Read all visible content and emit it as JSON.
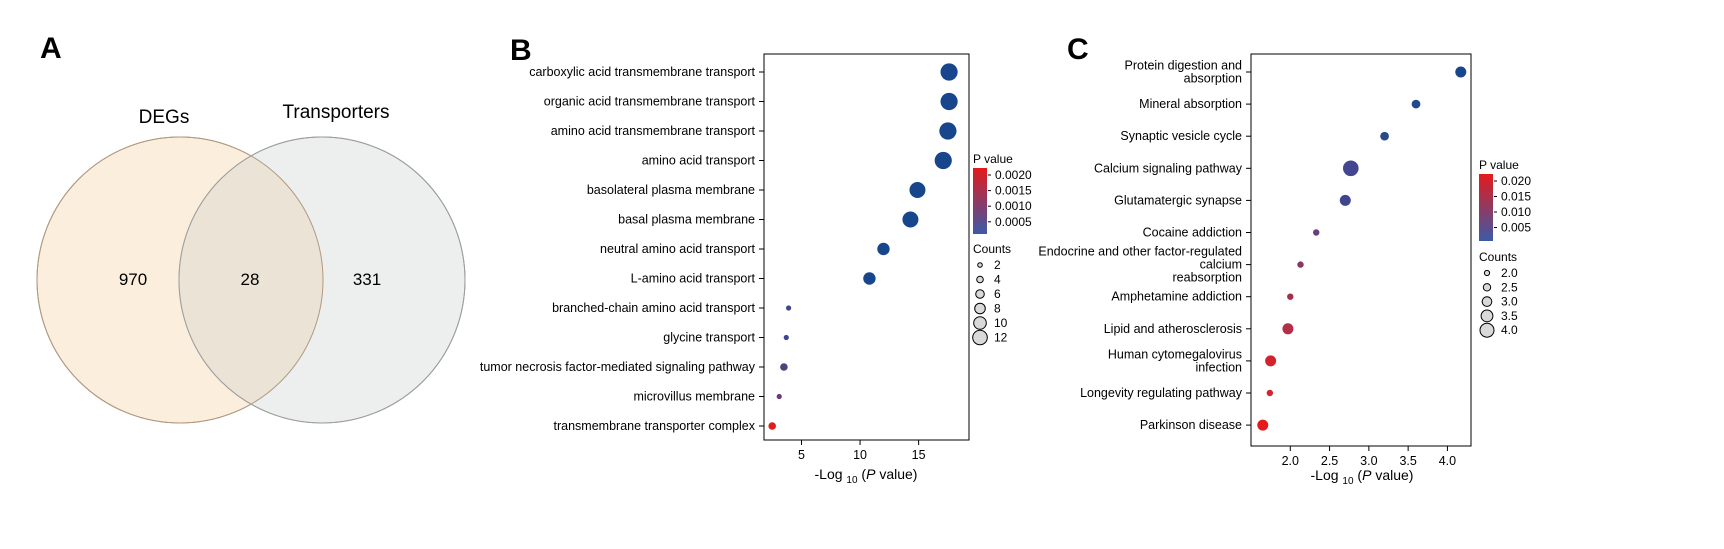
{
  "panels": {
    "a": "A",
    "b": "B",
    "c": "C"
  },
  "venn": {
    "left_label": "DEGs",
    "right_label": "Transporters",
    "left_only": "970",
    "both": "28",
    "right_only": "331",
    "left_color": "#fbeedd",
    "right_color": "#edeeee",
    "overlap_color": "#ebe3d6"
  },
  "axis_titles": {
    "b_xlabel": {
      "pre": "-Log ",
      "sub": "10",
      "mid": " (",
      "ital": "P",
      "post": " value)"
    },
    "c_xlabel": {
      "pre": "-Log ",
      "sub": "10",
      "mid": " (",
      "ital": "P",
      "post": " value)"
    }
  },
  "legends": {
    "b": {
      "pvalue_title": "P value",
      "pvalue_ticks": [
        "0.0020",
        "0.0015",
        "0.0010",
        "0.0005"
      ],
      "counts_title": "Counts",
      "counts_ticks": [
        "2",
        "4",
        "6",
        "8",
        "10",
        "12"
      ]
    },
    "c": {
      "pvalue_title": "P value",
      "pvalue_ticks": [
        "0.020",
        "0.015",
        "0.010",
        "0.005"
      ],
      "counts_title": "Counts",
      "counts_ticks": [
        "2.0",
        "2.5",
        "3.0",
        "3.5",
        "4.0"
      ]
    }
  },
  "chart_data": [
    {
      "type": "venn",
      "sets": [
        "DEGs",
        "Transporters"
      ],
      "values": {
        "DEGs_only": 970,
        "intersection": 28,
        "Transporters_only": 331
      }
    },
    {
      "type": "scatter",
      "subtype": "dot-plot",
      "xlabel": "-Log 10 (P value)",
      "xlim": [
        1.8,
        19.3
      ],
      "xticks": [
        5,
        10,
        15
      ],
      "categories": [
        "carboxylic acid transmembrane transport",
        "organic acid transmembrane transport",
        "amino acid transmembrane transport",
        "amino acid transport",
        "basolateral plasma membrane",
        "basal plasma membrane",
        "neutral amino acid transport",
        "L-amino acid transport",
        "branched-chain amino acid transport",
        "glycine transport",
        "tumor necrosis factor-mediated signaling pathway",
        "microvillus membrane",
        "transmembrane transporter complex"
      ],
      "x": [
        17.6,
        17.6,
        17.5,
        17.1,
        14.9,
        14.3,
        12.0,
        10.8,
        3.9,
        3.7,
        3.5,
        3.1,
        2.5
      ],
      "counts": [
        12,
        12,
        12,
        12,
        11,
        11,
        8,
        8,
        2,
        2,
        4,
        2,
        4
      ],
      "color_scale": {
        "title": "P value",
        "min": 0.0,
        "max": 0.0022,
        "low_color": "#2a4d9a",
        "high_color": "#e41a1c"
      },
      "size_legend": {
        "title": "Counts",
        "values": [
          2,
          4,
          6,
          8,
          10,
          12
        ]
      },
      "colors": [
        "#17468c",
        "#17468c",
        "#17468c",
        "#17468c",
        "#17468c",
        "#17468c",
        "#17468c",
        "#17468c",
        "#3f468f",
        "#3f468f",
        "#54407f",
        "#6a3b76",
        "#e41a1c"
      ]
    },
    {
      "type": "scatter",
      "subtype": "dot-plot",
      "xlabel": "-Log 10 (P value)",
      "xlim": [
        1.5,
        4.3
      ],
      "xticks": [
        2.0,
        2.5,
        3.0,
        3.5,
        4.0
      ],
      "categories": [
        "Protein digestion and absorption",
        "Mineral absorption",
        "Synaptic vesicle cycle",
        "Calcium signaling pathway",
        "Glutamatergic synapse",
        "Cocaine addiction",
        "Endocrine and other factor-regulated calcium reabsorption",
        "Amphetamine addiction",
        "Lipid and atherosclerosis",
        "Human cytomegalovirus infection",
        "Longevity regulating pathway",
        "Parkinson disease"
      ],
      "x": [
        4.17,
        3.6,
        3.2,
        2.77,
        2.7,
        2.33,
        2.13,
        2.0,
        1.97,
        1.75,
        1.74,
        1.65
      ],
      "counts": [
        3,
        2.5,
        2.5,
        4,
        3,
        2,
        2,
        2,
        3,
        3,
        2,
        3
      ],
      "color_scale": {
        "title": "P value",
        "min": 0.0,
        "max": 0.023,
        "low_color": "#2a4d9a",
        "high_color": "#e41a1c"
      },
      "size_legend": {
        "title": "Counts",
        "values": [
          2.0,
          2.5,
          3.0,
          3.5,
          4.0
        ]
      },
      "colors": [
        "#17468c",
        "#1f4a8c",
        "#274a8a",
        "#44478f",
        "#3f458d",
        "#6a3d7d",
        "#8d3663",
        "#a52f4b",
        "#b22f47",
        "#d3242e",
        "#cf2632",
        "#e41a1c"
      ]
    }
  ]
}
